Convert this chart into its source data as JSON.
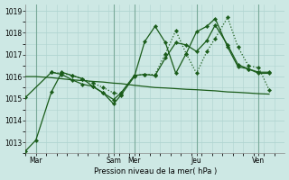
{
  "background_color": "#cde8e4",
  "grid_color": "#b0d4d0",
  "line_color": "#1a5c1a",
  "xlabel": "Pression niveau de la mer( hPa )",
  "ylim": [
    1012.5,
    1019.3
  ],
  "yticks": [
    1013,
    1014,
    1015,
    1016,
    1017,
    1018,
    1019
  ],
  "xlim": [
    0,
    25
  ],
  "day_labels": [
    "Mar",
    "Sam",
    "Mer",
    "Jeu",
    "Ven"
  ],
  "day_positions": [
    1.0,
    8.5,
    10.5,
    16.5,
    22.5
  ],
  "day_vlines": [
    1.0,
    8.5,
    10.5,
    16.5,
    22.5
  ],
  "n_minor_x": 25,
  "line1_x": [
    0.0,
    1.0,
    2.5,
    3.5,
    4.5,
    5.5,
    6.5,
    7.5,
    8.5,
    9.2,
    10.5,
    11.5,
    12.5,
    13.5,
    14.5,
    15.5,
    16.5,
    17.5,
    18.3,
    19.5,
    20.5,
    21.5,
    22.5,
    23.5
  ],
  "line1_y": [
    1012.6,
    1013.1,
    1015.3,
    1016.2,
    1016.05,
    1015.9,
    1015.55,
    1015.25,
    1014.75,
    1015.15,
    1016.0,
    1017.6,
    1018.3,
    1017.55,
    1016.15,
    1017.05,
    1018.05,
    1018.3,
    1018.65,
    1017.35,
    1016.45,
    1016.35,
    1016.2,
    1016.2
  ],
  "line2_x": [
    0.0,
    2.5,
    3.5,
    4.5,
    5.5,
    6.5,
    7.5,
    8.5,
    9.2,
    10.5,
    11.5,
    12.5,
    13.5,
    14.5,
    15.5,
    16.5,
    17.5,
    18.3,
    19.5,
    20.5,
    21.5,
    22.5,
    23.5
  ],
  "line2_y": [
    1015.05,
    1016.2,
    1016.1,
    1015.85,
    1015.65,
    1015.55,
    1015.25,
    1014.95,
    1015.25,
    1016.05,
    1016.1,
    1016.05,
    1016.85,
    1017.55,
    1017.45,
    1017.15,
    1017.65,
    1018.35,
    1017.45,
    1016.55,
    1016.35,
    1016.15,
    1016.15
  ],
  "line3_x": [
    2.5,
    3.5,
    4.5,
    5.5,
    6.5,
    7.5,
    8.5,
    9.2,
    10.5,
    11.5,
    12.5,
    13.5,
    14.5,
    15.5,
    16.5,
    17.5,
    18.3,
    19.5,
    20.5,
    21.5,
    22.5,
    23.5
  ],
  "line3_y": [
    1016.2,
    1016.15,
    1016.05,
    1015.9,
    1015.7,
    1015.5,
    1015.25,
    1015.2,
    1016.05,
    1016.1,
    1016.1,
    1017.05,
    1018.1,
    1017.05,
    1016.15,
    1017.15,
    1017.75,
    1018.7,
    1017.35,
    1016.5,
    1016.4,
    1015.4
  ],
  "line4_x": [
    0.0,
    1.0,
    2.5,
    3.5,
    4.5,
    5.5,
    6.5,
    7.5,
    8.5,
    9.2,
    10.5,
    11.5,
    12.5,
    13.5,
    14.5,
    15.5,
    16.5,
    17.5,
    18.3,
    19.5,
    20.5,
    21.5,
    22.5,
    23.5
  ],
  "line4_y": [
    1016.0,
    1016.0,
    1015.95,
    1015.9,
    1015.85,
    1015.82,
    1015.78,
    1015.75,
    1015.7,
    1015.68,
    1015.6,
    1015.55,
    1015.5,
    1015.48,
    1015.45,
    1015.42,
    1015.4,
    1015.37,
    1015.35,
    1015.3,
    1015.28,
    1015.25,
    1015.22,
    1015.2
  ]
}
